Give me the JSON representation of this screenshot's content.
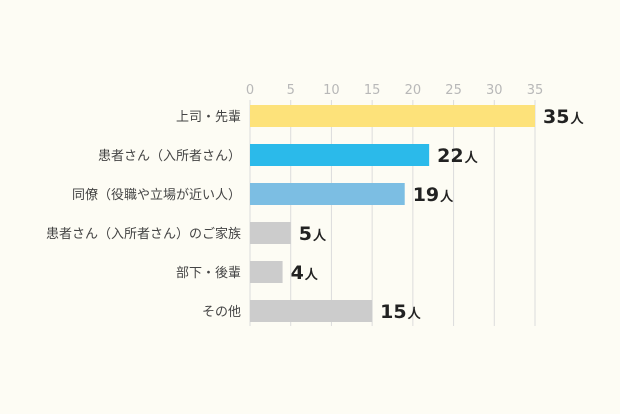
{
  "chart_data": {
    "type": "bar",
    "orientation": "horizontal",
    "xlim": [
      0,
      35
    ],
    "ticks": [
      "0",
      "5",
      "10",
      "15",
      "20",
      "25",
      "30",
      "35"
    ],
    "grid": true,
    "unit": "人",
    "categories": [
      "上司・先輩",
      "患者さん（入所者さん）",
      "同僚（役職や立場が近い人）",
      "患者さん（入所者さん）のご家族",
      "部下・後輩",
      "その他"
    ],
    "values": [
      35,
      22,
      19,
      5,
      4,
      15
    ],
    "value_labels": [
      "35",
      "22",
      "19",
      "5",
      "4",
      "15"
    ],
    "colors": [
      "#fde27a",
      "#2bbaea",
      "#7cbee3",
      "#cccccc",
      "#cccccc",
      "#cccccc"
    ]
  }
}
